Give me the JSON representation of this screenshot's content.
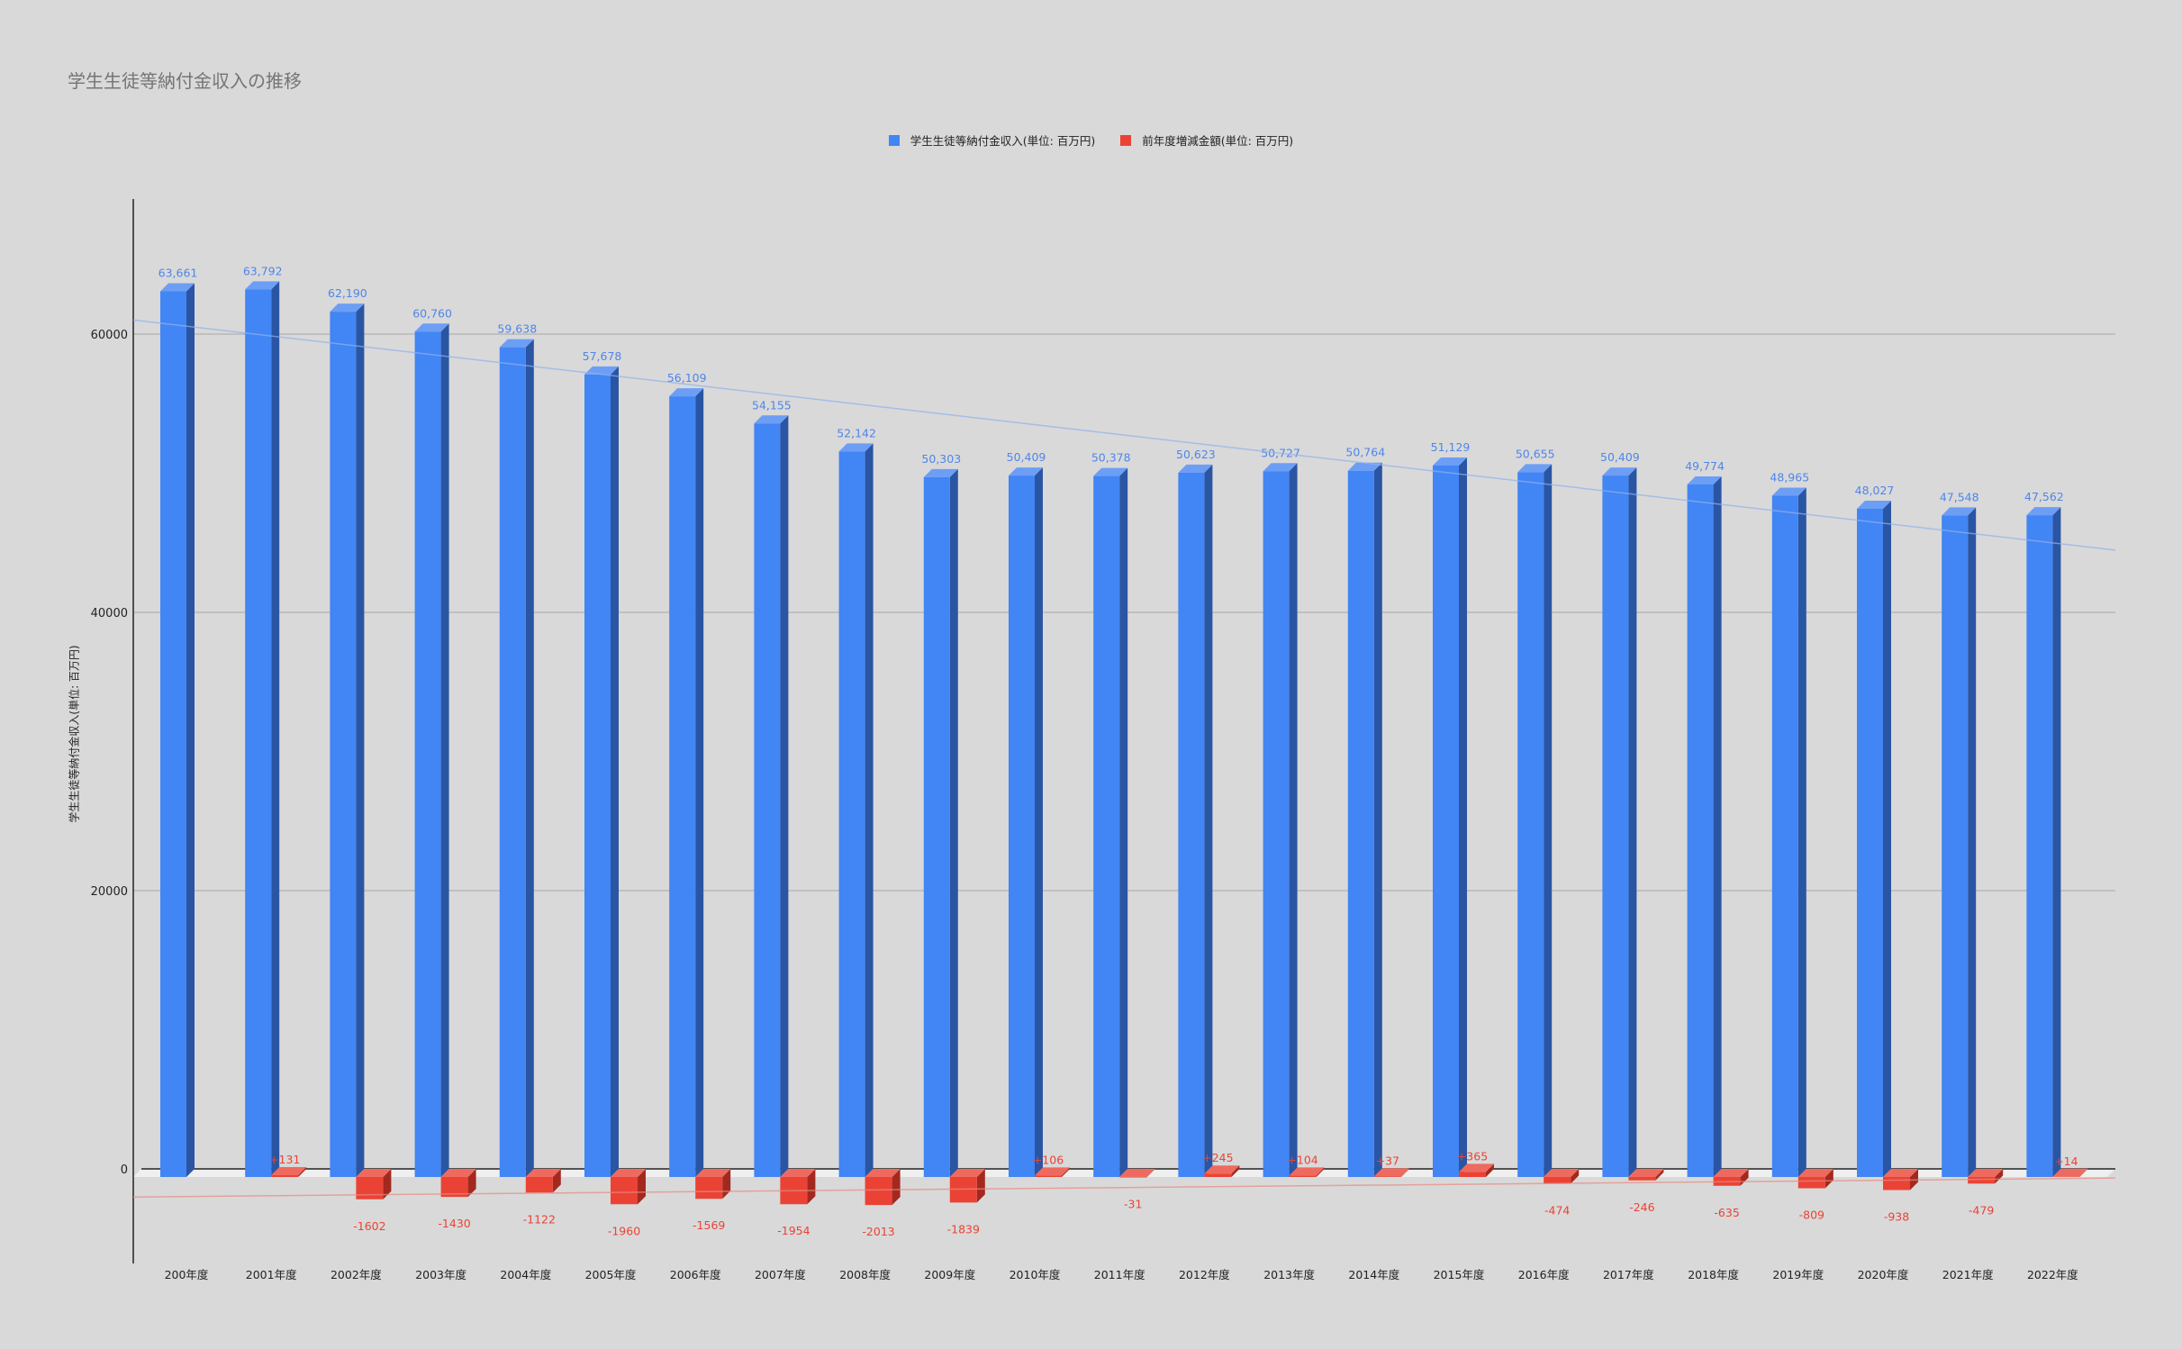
{
  "chart_data": {
    "type": "bar",
    "title": "学生生徒等納付金収入の推移",
    "ylabel": "学生生徒等納付金収入(単位: 百万円)",
    "xlabel": "",
    "ylim": [
      -7000,
      70000
    ],
    "yticks": [
      0,
      20000,
      40000,
      60000
    ],
    "grid": true,
    "legend_position": "top",
    "three_d": true,
    "trendlines": true,
    "categories": [
      "200年度",
      "2001年度",
      "2002年度",
      "2003年度",
      "2004年度",
      "2005年度",
      "2006年度",
      "2007年度",
      "2008年度",
      "2009年度",
      "2010年度",
      "2011年度",
      "2012年度",
      "2013年度",
      "2014年度",
      "2015年度",
      "2016年度",
      "2017年度",
      "2018年度",
      "2019年度",
      "2020年度",
      "2021年度",
      "2022年度"
    ],
    "series": [
      {
        "name": "学生生徒等納付金収入(単位: 百万円)",
        "color": "#4285f4",
        "values": [
          63661,
          63792,
          62190,
          60760,
          59638,
          57678,
          56109,
          54155,
          52142,
          50303,
          50409,
          50378,
          50623,
          50727,
          50764,
          51129,
          50655,
          50409,
          49774,
          48965,
          48027,
          47548,
          47562
        ],
        "labels": [
          "63,661",
          "63,792",
          "62,190",
          "60,760",
          "59,638",
          "57,678",
          "56,109",
          "54,155",
          "52,142",
          "50,303",
          "50,409",
          "50,378",
          "50,623",
          "50,727",
          "50,764",
          "51,129",
          "50,655",
          "50,409",
          "49,774",
          "48,965",
          "48,027",
          "47,548",
          "47,562"
        ]
      },
      {
        "name": "前年度増減金額(単位: 百万円)",
        "color": "#ea4335",
        "values": [
          null,
          131,
          -1602,
          -1430,
          -1122,
          -1960,
          -1569,
          -1954,
          -2013,
          -1839,
          106,
          -31,
          245,
          104,
          37,
          365,
          -474,
          -246,
          -635,
          -809,
          -938,
          -479,
          14
        ],
        "labels": [
          null,
          "+131",
          "-1602",
          "-1430",
          "-1122",
          "-1960",
          "-1569",
          "-1954",
          "-2013",
          "-1839",
          "+106",
          "-31",
          "+245",
          "+104",
          "+37",
          "+365",
          "-474",
          "-246",
          "-635",
          "-809",
          "-938",
          "-479",
          "+14"
        ]
      }
    ]
  }
}
